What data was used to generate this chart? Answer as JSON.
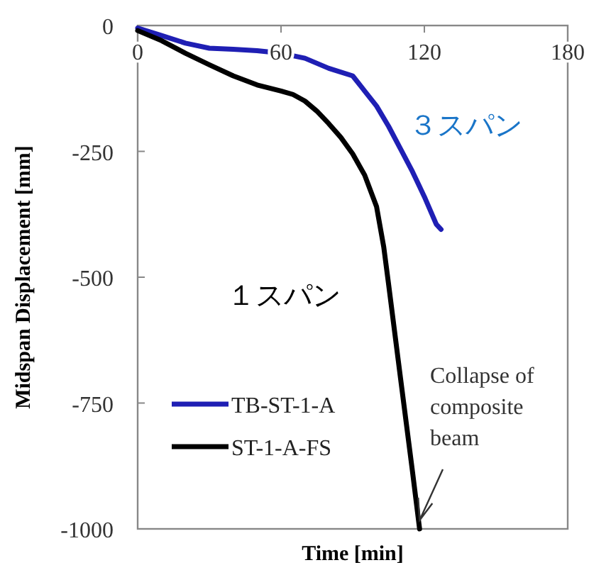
{
  "chart_data": {
    "type": "line",
    "xlabel": "Time [min]",
    "ylabel": "Midspan Displacement [mm]",
    "xlim": [
      0,
      180
    ],
    "xticks": [
      0,
      60,
      120,
      180
    ],
    "ylim": [
      -1000,
      0
    ],
    "yticks": [
      0,
      -250,
      -500,
      -750,
      -1000
    ],
    "grid": false,
    "legend": "bottom left",
    "marker": "none",
    "line_style": "solid",
    "series": [
      {
        "name": "TB-ST-1-A",
        "color": "#1f1fb4",
        "x": [
          0,
          10,
          20,
          30,
          40,
          50,
          60,
          70,
          80,
          90,
          95,
          100,
          105,
          110,
          115,
          120,
          125,
          127
        ],
        "values": [
          -5,
          -20,
          -35,
          -45,
          -47,
          -50,
          -55,
          -65,
          -85,
          -100,
          -130,
          -160,
          -200,
          -245,
          -290,
          -340,
          -395,
          -405
        ]
      },
      {
        "name": "ST-1-A-FS",
        "color": "#000000",
        "x": [
          0,
          10,
          20,
          30,
          40,
          50,
          60,
          65,
          70,
          75,
          80,
          85,
          90,
          95,
          100,
          103,
          105,
          110,
          115,
          118
        ],
        "values": [
          -10,
          -30,
          -55,
          -78,
          -100,
          -118,
          -130,
          -137,
          -150,
          -170,
          -195,
          -222,
          -255,
          -297,
          -360,
          -440,
          -513,
          -700,
          -885,
          -1000
        ]
      }
    ],
    "annotations": [
      "３スパン",
      "１スパン",
      {
        "text": "Collapse of composite beam",
        "x": 118,
        "y": -1000
      }
    ]
  }
}
